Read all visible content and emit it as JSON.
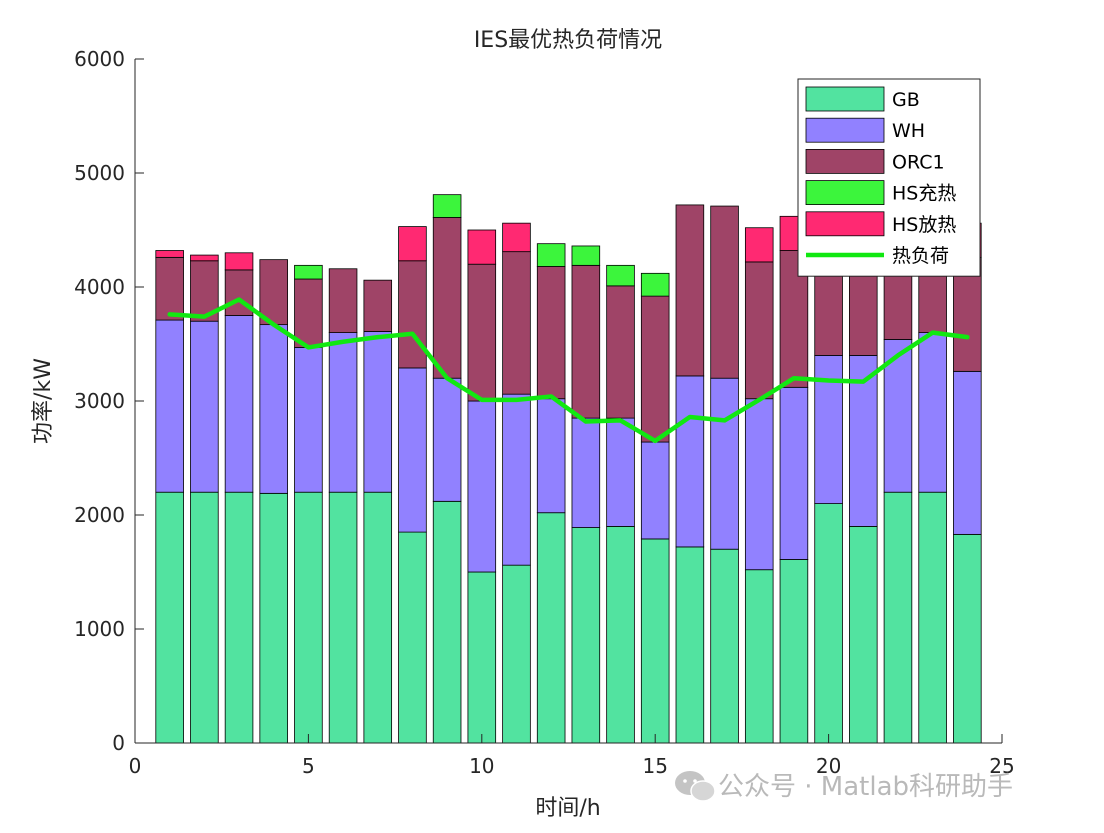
{
  "chart_data": {
    "type": "bar",
    "stacked": true,
    "title": "IES最优热负荷情况",
    "xlabel": "时间/h",
    "ylabel": "功率/kW",
    "xlim": [
      0,
      25
    ],
    "ylim": [
      0,
      6000
    ],
    "xticks": [
      0,
      5,
      10,
      15,
      20,
      25
    ],
    "yticks": [
      0,
      1000,
      2000,
      3000,
      4000,
      5000,
      6000
    ],
    "grid": false,
    "legend_position": "top-right",
    "x": [
      1,
      2,
      3,
      4,
      5,
      6,
      7,
      8,
      9,
      10,
      11,
      12,
      13,
      14,
      15,
      16,
      17,
      18,
      19,
      20,
      21,
      22,
      23,
      24
    ],
    "series": [
      {
        "name": "GB",
        "color": "#52e3a0",
        "values": [
          2200,
          2200,
          2200,
          2190,
          2200,
          2200,
          2200,
          1850,
          2120,
          1500,
          1560,
          2020,
          1890,
          1900,
          1790,
          1720,
          1700,
          1520,
          1610,
          2100,
          1900,
          2200,
          2200,
          1830
        ]
      },
      {
        "name": "WH",
        "color": "#9181ff",
        "values": [
          1510,
          1500,
          1550,
          1480,
          1270,
          1400,
          1410,
          1440,
          1080,
          1500,
          1500,
          1000,
          960,
          950,
          850,
          1500,
          1500,
          1500,
          1510,
          1300,
          1500,
          1340,
          1400,
          1430
        ]
      },
      {
        "name": "ORC1",
        "color": "#9f4467",
        "values": [
          550,
          530,
          400,
          570,
          600,
          560,
          450,
          940,
          1410,
          1200,
          1250,
          1160,
          1340,
          1160,
          1280,
          1500,
          1510,
          1200,
          1200,
          1000,
          1400,
          1000,
          1000,
          1000
        ]
      },
      {
        "name": "HS充热",
        "color": "#3cf53c",
        "values": [
          0,
          0,
          0,
          0,
          120,
          0,
          0,
          0,
          200,
          0,
          0,
          200,
          170,
          180,
          200,
          0,
          0,
          0,
          0,
          200,
          0,
          150,
          50,
          0
        ]
      },
      {
        "name": "HS放热",
        "color": "#ff2972",
        "values": [
          60,
          50,
          150,
          0,
          0,
          0,
          0,
          300,
          0,
          300,
          250,
          0,
          0,
          0,
          0,
          0,
          0,
          300,
          300,
          0,
          0,
          0,
          0,
          300
        ]
      }
    ],
    "line": {
      "name": "热负荷",
      "color": "#11e811",
      "values": [
        3760,
        3740,
        3890,
        3670,
        3470,
        3520,
        3560,
        3590,
        3200,
        3010,
        3010,
        3040,
        2820,
        2830,
        2650,
        2860,
        2830,
        3010,
        3200,
        3180,
        3170,
        3400,
        3600,
        3560
      ]
    },
    "legend": [
      {
        "label": "GB",
        "color": "#52e3a0",
        "kind": "bar"
      },
      {
        "label": "WH",
        "color": "#9181ff",
        "kind": "bar"
      },
      {
        "label": "ORC1",
        "color": "#9f4467",
        "kind": "bar"
      },
      {
        "label": "HS充热",
        "color": "#3cf53c",
        "kind": "bar"
      },
      {
        "label": "HS放热",
        "color": "#ff2972",
        "kind": "bar"
      },
      {
        "label": "热负荷",
        "color": "#11e811",
        "kind": "line"
      }
    ]
  },
  "watermark": {
    "text": "公众号 · Matlab科研助手"
  }
}
